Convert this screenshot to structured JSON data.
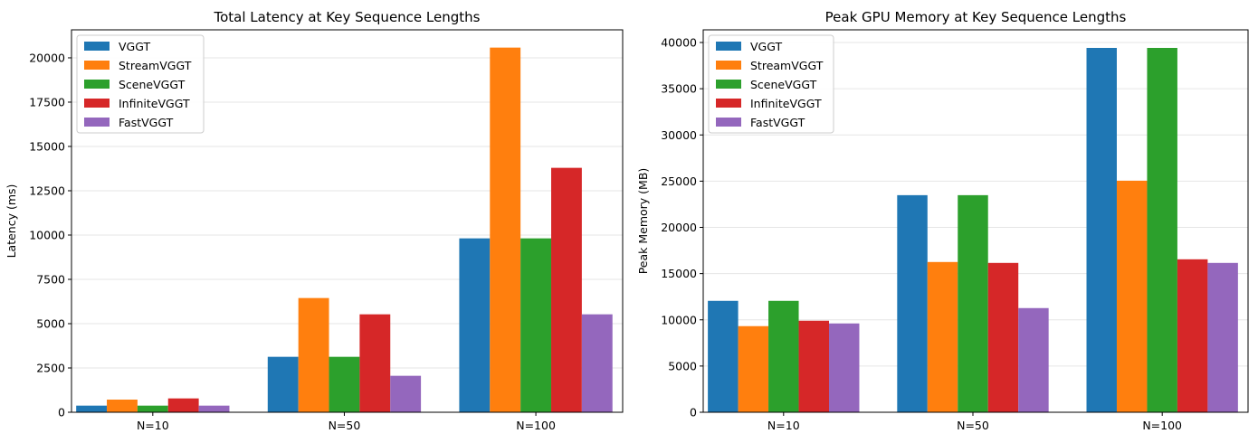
{
  "chart_data": [
    {
      "type": "bar",
      "title": "Total Latency at Key Sequence Lengths",
      "xlabel": "",
      "ylabel": "Latency (ms)",
      "categories": [
        "N=10",
        "N=50",
        "N=100"
      ],
      "ylim": [
        0,
        21580
      ],
      "yticks": [
        0,
        2500,
        5000,
        7500,
        10000,
        12500,
        15000,
        17500,
        20000
      ],
      "grid": "y",
      "legend": "top-left",
      "series": [
        {
          "name": "VGGT",
          "color": "#1f77b4",
          "values": [
            374,
            3129,
            9813
          ]
        },
        {
          "name": "StreamVGGT",
          "color": "#ff7f0e",
          "values": [
            714,
            6446,
            20578
          ]
        },
        {
          "name": "SceneVGGT",
          "color": "#2ca02c",
          "values": [
            374,
            3129,
            9813
          ]
        },
        {
          "name": "InfiniteVGGT",
          "color": "#d62728",
          "values": [
            782,
            5527,
            13793
          ]
        },
        {
          "name": "FastVGGT",
          "color": "#9467bd",
          "values": [
            374,
            2058,
            5527
          ]
        }
      ]
    },
    {
      "type": "bar",
      "title": "Peak GPU Memory at Key Sequence Lengths",
      "xlabel": "",
      "ylabel": "Peak Memory (MB)",
      "categories": [
        "N=10",
        "N=50",
        "N=100"
      ],
      "ylim": [
        0,
        41370
      ],
      "yticks": [
        0,
        5000,
        10000,
        15000,
        20000,
        25000,
        30000,
        35000,
        40000
      ],
      "grid": "y",
      "legend": "top-left",
      "series": [
        {
          "name": "VGGT",
          "color": "#1f77b4",
          "values": [
            12052,
            23485,
            39414
          ]
        },
        {
          "name": "StreamVGGT",
          "color": "#ff7f0e",
          "values": [
            9316,
            16254,
            25049
          ]
        },
        {
          "name": "SceneVGGT",
          "color": "#2ca02c",
          "values": [
            12052,
            23485,
            39414
          ]
        },
        {
          "name": "InfiniteVGGT",
          "color": "#d62728",
          "values": [
            9902,
            16156,
            16547
          ]
        },
        {
          "name": "FastVGGT",
          "color": "#9467bd",
          "values": [
            9609,
            11270,
            16156
          ]
        }
      ]
    }
  ]
}
